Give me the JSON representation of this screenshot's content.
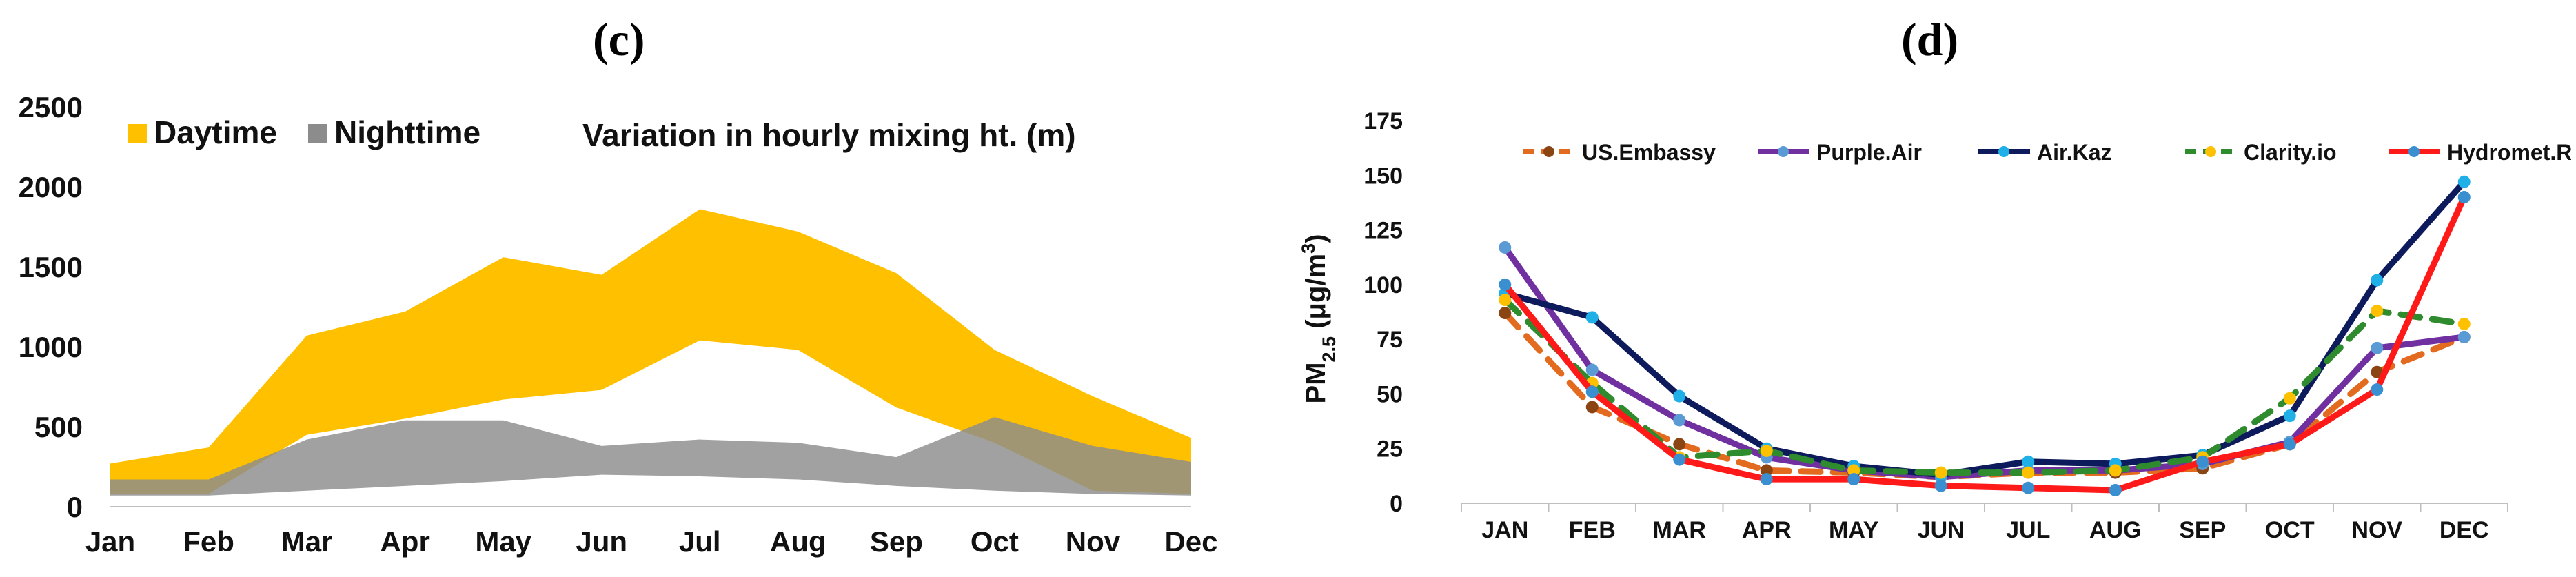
{
  "panels": {
    "c": "(c)",
    "d": "(d)"
  },
  "chart_data": [
    {
      "type": "area",
      "panel": "(c)",
      "title": "Variation in hourly mixing ht. (m)",
      "categories": [
        "Jan",
        "Feb",
        "Mar",
        "Apr",
        "May",
        "Jun",
        "Jul",
        "Aug",
        "Sep",
        "Oct",
        "Nov",
        "Dec"
      ],
      "ylim": [
        0,
        2500
      ],
      "yticks": [
        0,
        500,
        1000,
        1500,
        2000,
        2500
      ],
      "legend": "top-left",
      "colors": {
        "Daytime": "#FFC000",
        "Nighttime": "#8C8C8C"
      },
      "series": [
        {
          "name": "Daytime",
          "low": [
            80,
            80,
            450,
            550,
            670,
            730,
            1040,
            980,
            620,
            400,
            100,
            80
          ],
          "high": [
            270,
            370,
            1070,
            1220,
            1560,
            1450,
            1860,
            1720,
            1460,
            980,
            690,
            430
          ]
        },
        {
          "name": "Nighttime",
          "low": [
            70,
            70,
            100,
            130,
            160,
            200,
            190,
            170,
            130,
            100,
            80,
            70
          ],
          "high": [
            170,
            170,
            420,
            540,
            540,
            380,
            420,
            400,
            310,
            560,
            380,
            280
          ]
        }
      ]
    },
    {
      "type": "line",
      "panel": "(d)",
      "categories": [
        "JAN",
        "FEB",
        "MAR",
        "APR",
        "MAY",
        "JUN",
        "JUL",
        "AUG",
        "SEP",
        "OCT",
        "NOV",
        "DEC"
      ],
      "ylabel_main": "PM",
      "ylabel_sub": "2.5",
      "ylabel_unit": " (μg/m",
      "ylabel_sup": "3",
      "ylabel_end": ")",
      "ylim": [
        0,
        175
      ],
      "yticks": [
        0,
        25,
        50,
        75,
        100,
        125,
        150,
        175
      ],
      "legend": "top",
      "series": [
        {
          "name": "US.Embassy",
          "color": "#E26B1F",
          "marker": "#8B4513",
          "dashed": true,
          "values": [
            87,
            44,
            27,
            15,
            14,
            12,
            14,
            14,
            16,
            27,
            60,
            76
          ]
        },
        {
          "name": "Purple.Air",
          "color": "#7030A0",
          "marker": "#5A9BD5",
          "dashed": false,
          "values": [
            117,
            61,
            38,
            21,
            15,
            12,
            15,
            15,
            18,
            28,
            71,
            76
          ]
        },
        {
          "name": "Air.Kaz",
          "color": "#0D1B5C",
          "marker": "#1FB0E8",
          "dashed": false,
          "values": [
            96,
            85,
            49,
            25,
            17,
            13,
            19,
            18,
            22,
            40,
            102,
            147
          ]
        },
        {
          "name": "Clarity.io",
          "color": "#2E8B2E",
          "marker": "#FFC000",
          "dashed": true,
          "values": [
            93,
            55,
            21,
            24,
            15,
            14,
            14,
            15,
            21,
            48,
            88,
            82
          ]
        },
        {
          "name": "Hydromet.Ref",
          "color": "#FF1A1A",
          "marker": "#3A8FD0",
          "dashed": false,
          "values": [
            100,
            51,
            20,
            11,
            11,
            8,
            7,
            6,
            19,
            27,
            52,
            140
          ]
        }
      ]
    }
  ]
}
